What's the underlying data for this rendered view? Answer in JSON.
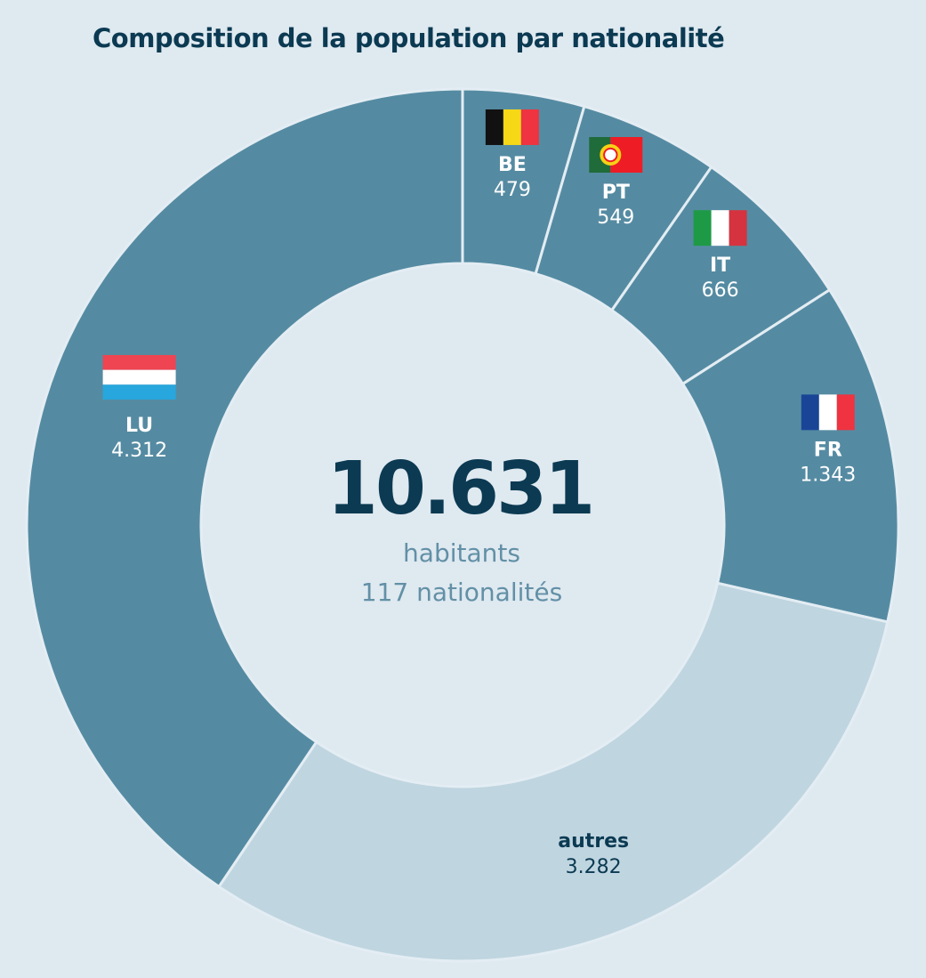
{
  "title": "Composition de la population par nationalité",
  "colors": {
    "dark_slice": "#558ba2",
    "light_slice": "#bfd5e0",
    "text_dark": "#0b3a52",
    "text_muted": "#6290a6",
    "background": "#dfe9f0"
  },
  "center": {
    "total": "10.631",
    "line1": "habitants",
    "line2": "117 nationalités"
  },
  "chart_data": {
    "type": "pie",
    "variant": "donut",
    "title": "Composition de la population par nationalité",
    "total": 10631,
    "slices": [
      {
        "code": "BE",
        "label": "479",
        "value": 479,
        "flag": "belgium-flag",
        "color": "#558ba2"
      },
      {
        "code": "PT",
        "label": "549",
        "value": 549,
        "flag": "portugal-flag",
        "color": "#558ba2"
      },
      {
        "code": "IT",
        "label": "666",
        "value": 666,
        "flag": "italy-flag",
        "color": "#558ba2"
      },
      {
        "code": "FR",
        "label": "1.343",
        "value": 1343,
        "flag": "france-flag",
        "color": "#558ba2"
      },
      {
        "code": "autres",
        "label": "3.282",
        "value": 3282,
        "flag": "",
        "color": "#bfd5e0"
      },
      {
        "code": "LU",
        "label": "4.312",
        "value": 4312,
        "flag": "luxembourg-flag",
        "color": "#558ba2"
      }
    ]
  }
}
